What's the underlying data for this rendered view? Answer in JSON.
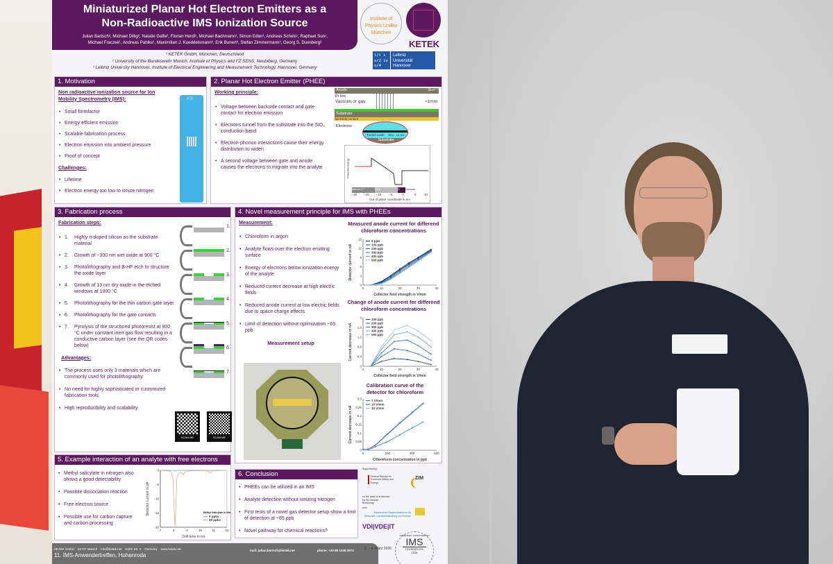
{
  "poster": {
    "title_line1": "Miniaturized Planar Hot Electron Emitters as a",
    "title_line2": "Non-Radioactive IMS Ionization Source",
    "authors_line1": "Julian Bartsch², Michael Dillig², Natalie Galfe², Florian Herdl¹, Michael Bachmann¹, Simon Edler¹, Andreas Schels¹, Raphael Sun¹,",
    "authors_line2": "Michael Fraczek¹, Andreas Pahlke¹, Maximilian J. Kueddelsmann³, Erik Bunert³, Stefan Zimmermann³, Georg S. Duesberg²",
    "affiliations": [
      "¹ KETEK GmbH, München, Deutschland",
      "² University of the Bundeswehr Munich, Institute of Physics and FZ SENS, Neubiberg, Germany",
      "³ Leibniz University Hannover, Institute of Electrical Engineering and Measurement Technology, Hannover, Germany"
    ],
    "logos": {
      "unibw": "Institute of Physics UniBw München",
      "ketek": "KETEK",
      "luh_mark": "l/l i o/2 io o/4",
      "luh": "Leibniz Universität Hannover"
    },
    "motivation": {
      "header": "1. Motivation",
      "subheading": "Non radioactive ionization source for Ion Mobility Spectrometry (IMS):",
      "items": [
        "Small formfactor",
        "Energy efficient emission",
        "Scalable fabrication process",
        "Electron emission into ambient pressure",
        "Proof of concept"
      ],
      "challenges_heading": "Challenges:",
      "challenges": [
        "Lifetime",
        "Electron energy too low to ionize nitrogen"
      ],
      "chip_label": "K3"
    },
    "phee": {
      "header": "2. Planar Hot Electron Emitter (PHEE)",
      "subheading": "Working principle:",
      "items": [
        "Voltage between backside contact and gate contact for electron emission",
        "Electrons tunnel from the substrate into the SiO₂ conduction band",
        "Electron-phonon interactions cause their energy distribution to widen",
        "A second voltage between gate and anode causes the electrons to migrate into the analyte"
      ],
      "diagram": {
        "anode": "Anode",
        "si": "Si-n⁺⁺",
        "pt": "Pt film",
        "vac": "Vacuum or gas",
        "gap": "≈1mm",
        "substrate": "Substrate",
        "backside": "Backside contact",
        "electrons": "Electrons",
        "tunnel": "Tunnel oxide",
        "sio2": "SiO₂ - 13 nm",
        "substrate2": "Substrate"
      },
      "band_xlabel": "Out of plane coordinate in nm",
      "band_ylabel": "Potential energy",
      "band_regions": [
        "Silicon n⁺⁺",
        "SiO₂",
        "C",
        "Vacuum"
      ],
      "band_ticks": [
        "−20",
        "−15",
        "−10",
        "−5",
        "0",
        "5",
        "10"
      ]
    },
    "fabrication": {
      "header": "3. Fabrication process",
      "subheading": "Fabrication steps:",
      "steps": [
        "Highly n-doped silicon as the substrate material",
        "Growth of ~300 nm wet oxide at 900 °C",
        "Photolithography and B-HF etch to structure the oxide layer",
        "Growth of 13 nm dry oxide in the etched windows at 1000 °C",
        "Photolithography for the thin carbon gate layer",
        "Photolithography for the gate contacts",
        "Pyrolysis of the structured photoresist at 900 °C under constant inert gas flow resulting in a conductive carbon layer (see the QR codes below)"
      ],
      "step_labels": [
        "1.",
        "2.",
        "3.",
        "4.",
        "5.",
        "6.",
        "7."
      ],
      "step_numbers": [
        "1.",
        "2.",
        "3.",
        "4.",
        "5.",
        "6.",
        "7."
      ],
      "advantages_heading": "Advantages:",
      "advantages": [
        "The process uses only 3 materials which are commonly used for photolithography",
        "No need for highly sophisticated or customized fabrication tools",
        "High reproducibility and scalability"
      ],
      "qr_label": "SCAN ME"
    },
    "measurement": {
      "header": "4. Novel measurement principle for IMS with PHEEs",
      "subheading": "Measurement:",
      "items": [
        "Chloroform in argon",
        "Analyte flows over the electron emitting surface",
        "Energy of electrons below ionization energy of the analyte",
        "Reduced current decrease at high electric fields",
        "Reduced anode current at low electric fields due to space charge effects",
        "Limit of detection without optimization ~65 ppb"
      ],
      "setup_title": "Measurement setup"
    },
    "example": {
      "header": "5. Example interaction of an analyte with free electrons",
      "items": [
        "Methyl salicylate in nitrogen also shows a good detectability",
        "Possible dissociation reaction",
        "Free electron source",
        "Possible use for carbon capture and carbon processing"
      ]
    },
    "conclusion": {
      "header": "6. Conclusion",
      "items": [
        "PHEEs can be utilized in an IMS",
        "Analyte detection without ionizing nitrogen",
        "First tests of a novel gas detector setup show a limit of detection at ~65 ppb",
        "Novel pathway for chemical reactions?"
      ]
    },
    "sponsors": {
      "supported": "Supported by:",
      "bmwi": "Federal Ministry for Economic Affairs and Energy",
      "zim": "ZIM",
      "decision": "on the basis of a decision by the German Bundestag",
      "and": "and:",
      "bavaria": "Bayerisches Staatsministerium für Wirtschaft, Landesentwicklung und Energie",
      "vdi": "VDI|VDE|IT"
    },
    "footer": {
      "address": "KETEK GmbH    81737 Munich    info@ketek.net    Hofer Str. 3    Germany    www.ketek.net",
      "event": "11. IMS-Anwendertreffen, Hohenroda",
      "mail": "mail: julian.bartsch@ketek.net",
      "phone": "phone: +49 89 1249 3974",
      "date": "2. – 4. März 2026",
      "seal_ring": "ANWENDER · INNENTREFFEN",
      "seal_main": "IMS",
      "seal_place": "HOHENRODA",
      "seal_year": "2026"
    }
  },
  "colors": {
    "poster_purple": "#5b1a5f",
    "series_dark": "#1f3f7a",
    "series_mid": "#2e75b6",
    "series_light": "#9dc3e6",
    "example_0": "#7fb8d8",
    "example_50": "#e8a07a"
  },
  "chart_data": [
    {
      "type": "line",
      "title": "Measured anode current for differend chloroform concentrations",
      "xlabel": "Collector field strength in V/mm",
      "ylabel": "Detector current in nA",
      "xlim": [
        0,
        40
      ],
      "ylim": [
        0,
        15
      ],
      "xticks": [
        "0",
        "10",
        "20",
        "30",
        "40"
      ],
      "yticks": [
        "0",
        "3",
        "6",
        "9",
        "12",
        "15"
      ],
      "legend": "top-left",
      "x": [
        4,
        10,
        15,
        20,
        25,
        30,
        37
      ],
      "series": [
        {
          "name": "0 ppb",
          "values": [
            0,
            1.2,
            3.1,
            5.3,
            7.3,
            9.1,
            11.7
          ]
        },
        {
          "name": "100 ppb",
          "values": [
            0,
            1.0,
            2.8,
            5.0,
            7.0,
            8.9,
            11.5
          ]
        },
        {
          "name": "200 ppb",
          "values": [
            0,
            0.8,
            2.5,
            4.7,
            6.7,
            8.6,
            11.3
          ]
        },
        {
          "name": "300 ppb",
          "values": [
            0,
            0.6,
            2.2,
            4.3,
            6.3,
            8.3,
            11.1
          ]
        },
        {
          "name": "400 ppb",
          "values": [
            0,
            0.5,
            2.0,
            4.0,
            6.0,
            8.0,
            10.9
          ]
        },
        {
          "name": "500 ppb",
          "values": [
            0,
            0.4,
            1.8,
            3.8,
            5.8,
            7.8,
            10.7
          ]
        }
      ]
    },
    {
      "type": "line",
      "title": "Change of anode current for differend chloroform concentrations",
      "xlabel": "Collector field strength in V/mm",
      "ylabel": "Current decrease in nA",
      "xlim": [
        0,
        40
      ],
      "ylim": [
        0,
        2
      ],
      "xticks": [
        "0",
        "10",
        "20",
        "30",
        "40"
      ],
      "yticks": [
        "0",
        "0,4",
        "0,8",
        "1,2",
        "1,6",
        "2"
      ],
      "legend": "top-left",
      "x": [
        4,
        10,
        17,
        24,
        30,
        37
      ],
      "series": [
        {
          "name": "100 ppb",
          "values": [
            0,
            0.2,
            0.32,
            0.28,
            0.2,
            0.07
          ]
        },
        {
          "name": "200 ppb",
          "values": [
            0,
            0.4,
            0.72,
            0.65,
            0.5,
            0.25
          ]
        },
        {
          "name": "300 ppb",
          "values": [
            0,
            0.55,
            1.02,
            1.08,
            0.85,
            0.5
          ]
        },
        {
          "name": "400 ppb",
          "values": [
            0,
            0.7,
            1.3,
            1.42,
            1.2,
            0.8
          ]
        },
        {
          "name": "500 ppb",
          "values": [
            0,
            0.8,
            1.5,
            1.68,
            1.45,
            1.05
          ]
        }
      ]
    },
    {
      "type": "line",
      "title": "Calibration curve of the detector for chloroform",
      "xlabel": "Chloroform concentration in ppb",
      "ylabel": "Current decrease in nA",
      "xlim": [
        0,
        600
      ],
      "ylim": [
        0,
        0.3
      ],
      "xticks": [
        "0",
        "200",
        "400",
        "600"
      ],
      "yticks": [
        "0",
        "0,05",
        "0,1",
        "0,15",
        "0,2",
        "0,25",
        "0,3"
      ],
      "legend": "top-left",
      "x": [
        0,
        40,
        100,
        200,
        300,
        400,
        490
      ],
      "series": [
        {
          "name": "7 V/mm",
          "values": [
            0,
            0,
            0.02,
            0.05,
            0.09,
            0.13,
            0.165
          ]
        },
        {
          "name": "10 V/mm",
          "values": [
            0.005,
            0.005,
            0.03,
            0.095,
            0.16,
            0.22,
            0.275
          ]
        },
        {
          "name": "13 V/mm",
          "values": [
            0,
            0,
            0.025,
            0.09,
            0.155,
            0.215,
            0.27
          ]
        }
      ]
    },
    {
      "type": "line",
      "title": "",
      "xlabel": "Drift time in ms",
      "ylabel": "Detector current in pA",
      "xlim": [
        7,
        12
      ],
      "ylim": [
        -20,
        0
      ],
      "xticks": [
        "7",
        "8",
        "9",
        "10",
        "11",
        "12"
      ],
      "yticks": [
        "-20",
        "-15",
        "-10",
        "-5",
        "0"
      ],
      "legend": "bottom-right",
      "legend_title": "Methyl Salicylate in Nitrogen",
      "x": [
        7,
        7.8,
        7.95,
        8.05,
        8.1,
        8.15,
        8.25,
        8.5,
        8.65,
        8.72,
        8.8,
        9.2,
        10.5,
        10.75,
        10.9,
        12
      ],
      "series": [
        {
          "name": "0 ppbv",
          "values": [
            0,
            0,
            -0.1,
            -0.2,
            -0.3,
            -0.2,
            -0.1,
            0,
            0,
            -0.1,
            0,
            0,
            0,
            -0.2,
            0,
            0
          ]
        },
        {
          "name": "50 ppbv",
          "values": [
            0,
            -0.3,
            -3,
            -15,
            -20,
            -14,
            -2,
            -0.5,
            -1.2,
            -1.8,
            -0.6,
            -0.2,
            -0.1,
            -0.9,
            -0.2,
            0
          ]
        }
      ]
    }
  ]
}
